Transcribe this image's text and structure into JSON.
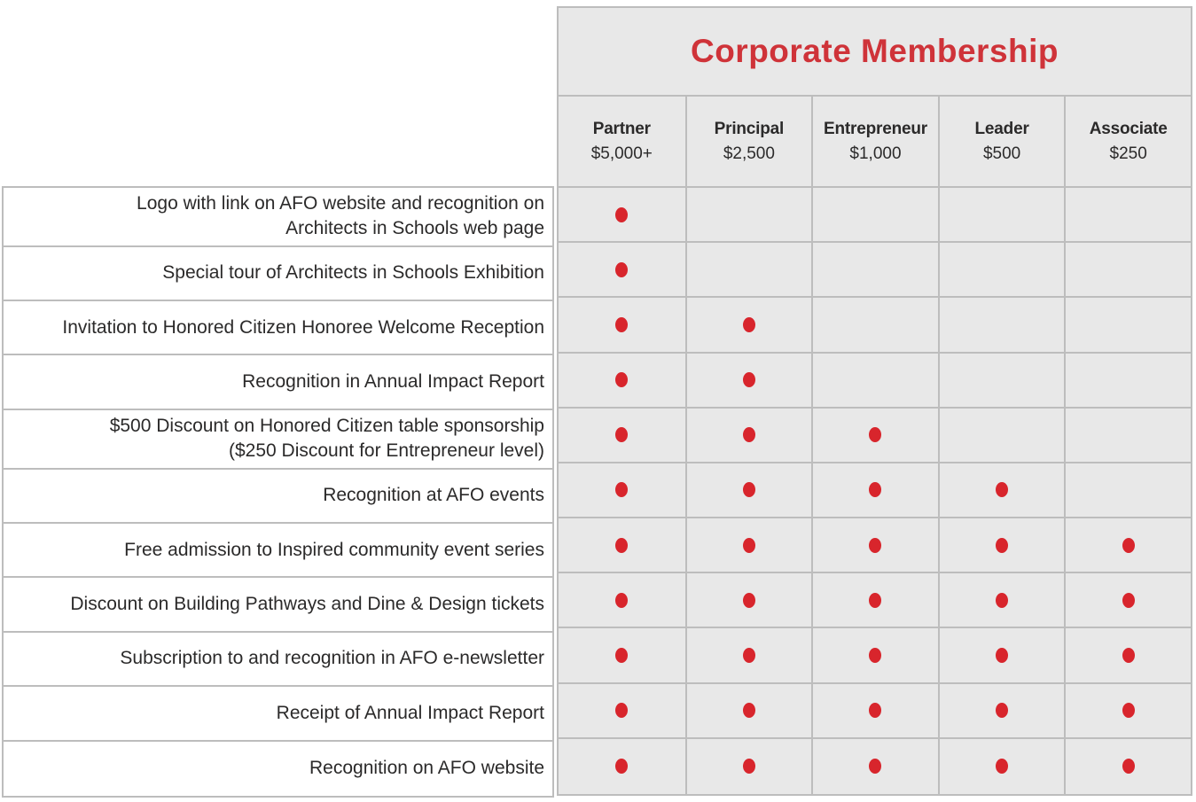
{
  "table": {
    "title": "Corporate Membership",
    "tiers": [
      {
        "name": "Partner",
        "price": "$5,000+"
      },
      {
        "name": "Principal",
        "price": "$2,500"
      },
      {
        "name": "Entrepreneur",
        "price": "$1,000"
      },
      {
        "name": "Leader",
        "price": "$500"
      },
      {
        "name": "Associate",
        "price": "$250"
      }
    ],
    "benefits": [
      {
        "label": "Logo with link on AFO website and recognition on\nArchitects in Schools web page",
        "included": [
          true,
          false,
          false,
          false,
          false
        ]
      },
      {
        "label": "Special tour of Architects in Schools Exhibition",
        "included": [
          true,
          false,
          false,
          false,
          false
        ]
      },
      {
        "label": "Invitation to Honored Citizen Honoree Welcome Reception",
        "included": [
          true,
          true,
          false,
          false,
          false
        ]
      },
      {
        "label": "Recognition in Annual Impact Report",
        "included": [
          true,
          true,
          false,
          false,
          false
        ]
      },
      {
        "label": "$500 Discount on Honored Citizen table sponsorship\n($250 Discount for Entrepreneur level)",
        "included": [
          true,
          true,
          true,
          false,
          false
        ]
      },
      {
        "label": "Recognition at AFO events",
        "included": [
          true,
          true,
          true,
          true,
          false
        ]
      },
      {
        "label": "Free admission to Inspired community event series",
        "included": [
          true,
          true,
          true,
          true,
          true
        ]
      },
      {
        "label": "Discount on Building Pathways and Dine & Design tickets",
        "included": [
          true,
          true,
          true,
          true,
          true
        ]
      },
      {
        "label": "Subscription to and recognition in AFO e-newsletter",
        "included": [
          true,
          true,
          true,
          true,
          true
        ]
      },
      {
        "label": "Receipt of Annual Impact Report",
        "included": [
          true,
          true,
          true,
          true,
          true
        ]
      },
      {
        "label": "Recognition on AFO website",
        "included": [
          true,
          true,
          true,
          true,
          true
        ]
      }
    ],
    "included_marker": "red-dot-icon"
  },
  "colors": {
    "title_red": "#cf3339",
    "dot_red": "#d8252c",
    "cell_bg": "#e8e8e8",
    "border_gray": "#bdbdbd",
    "text_dark": "#2b2a2a",
    "label_bg": "#ffffff"
  }
}
